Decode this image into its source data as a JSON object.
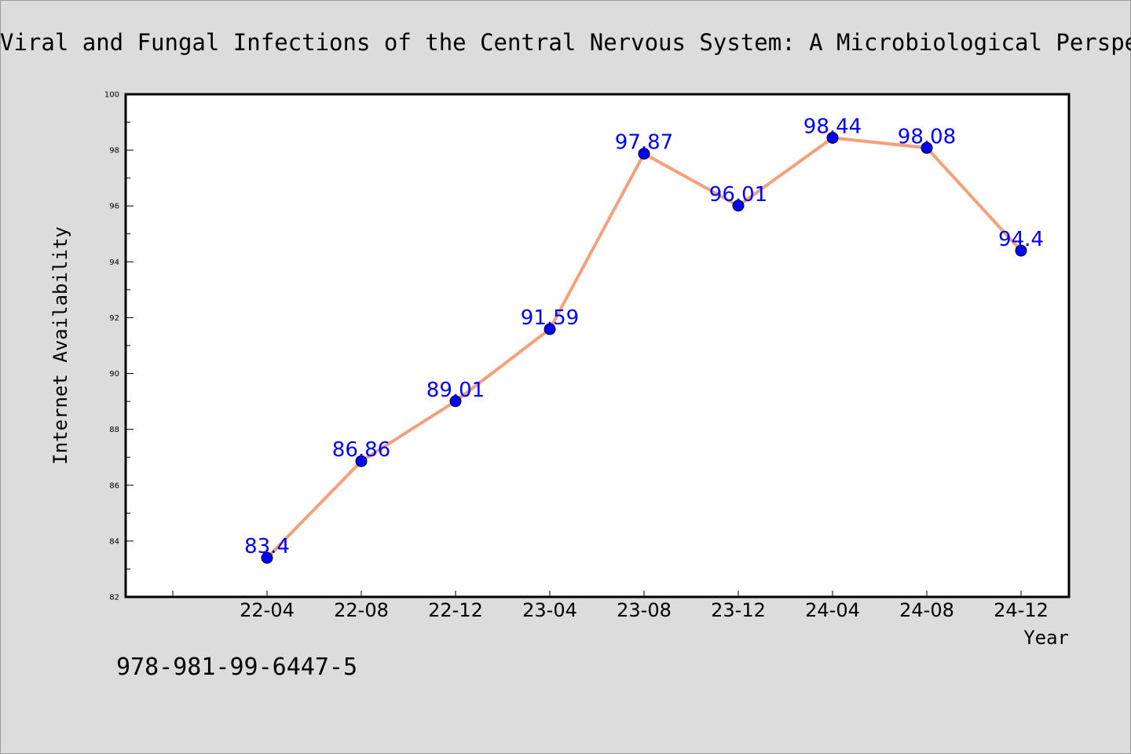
{
  "title": "Viral and Fungal Infections of the Central Nervous System: A Microbiological Perspective",
  "footer_text": "978-981-99-6447-5",
  "colors": {
    "background": "#dcdcdc",
    "plot_background": "#ffffff",
    "line": "#f4a07a",
    "marker": "#0000ff",
    "data_label": "#0000ff"
  },
  "chart_data": {
    "type": "line",
    "title": "Viral and Fungal Infections of the Central Nervous System: A Microbiological Perspective",
    "xlabel": "Year",
    "ylabel": "Internet Availability",
    "categories": [
      "22-04",
      "22-08",
      "22-12",
      "23-04",
      "23-08",
      "23-12",
      "24-04",
      "24-08",
      "24-12"
    ],
    "series": [
      {
        "values": [
          83.4,
          86.86,
          89.01,
          91.59,
          97.87,
          96.01,
          98.44,
          98.08,
          94.4
        ],
        "labels": [
          "83.4",
          "86.86",
          "89.01",
          "91.59",
          "97.87",
          "96.01",
          "98.44",
          "98.08",
          "94.4"
        ]
      }
    ],
    "ylim": [
      82,
      100
    ],
    "yticks": [
      82,
      84,
      86,
      88,
      90,
      92,
      94,
      96,
      98,
      100
    ],
    "ytick_labels": [
      "82",
      "84",
      "86",
      "88",
      "90",
      "92",
      "94",
      "96",
      "98",
      "100"
    ],
    "grid": false,
    "legend": "none"
  }
}
